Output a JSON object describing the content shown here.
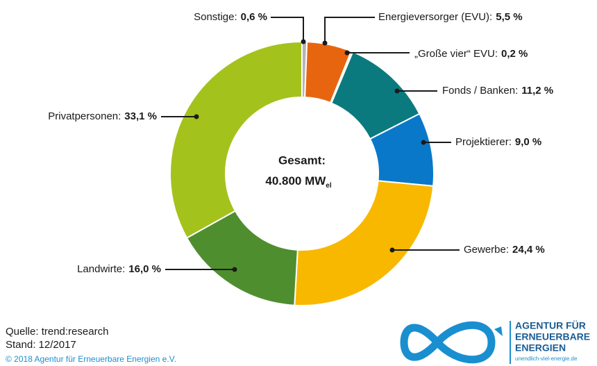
{
  "chart_data": {
    "type": "donut",
    "categories": [
      "Sonstige:",
      "Energieversorger (EVU):",
      "„Große vier“ EVU:",
      "Fonds / Banken:",
      "Projektierer:",
      "Gewerbe:",
      "Landwirte:",
      "Privatpersonen:"
    ],
    "values": [
      0.6,
      5.5,
      0.2,
      11.2,
      9.0,
      24.4,
      16.0,
      33.1
    ],
    "value_labels": [
      "0,6 %",
      "5,5 %",
      "0,2 %",
      "11,2 %",
      "9,0 %",
      "24,4 %",
      "16,0 %",
      "33,1 %"
    ],
    "colors": [
      "#b4b4b4",
      "#e8650f",
      "#f3a366",
      "#0b7a7e",
      "#0a78c8",
      "#f8b800",
      "#4f8e2f",
      "#a4c21c"
    ],
    "center_label": "Gesamt:",
    "total_label": "40.800 MW",
    "total_subscript": "el"
  },
  "footer": {
    "source": "Quelle: trend:research",
    "date": "Stand: 12/2017",
    "copyright": "© 2018 Agentur für Erneuerbare Energien e.V."
  },
  "logo": {
    "line1": "AGENTUR FÜR",
    "line2": "ERNEUERBARE",
    "line3": "ENERGIEN",
    "url": "unendlich-viel-energie.de"
  }
}
